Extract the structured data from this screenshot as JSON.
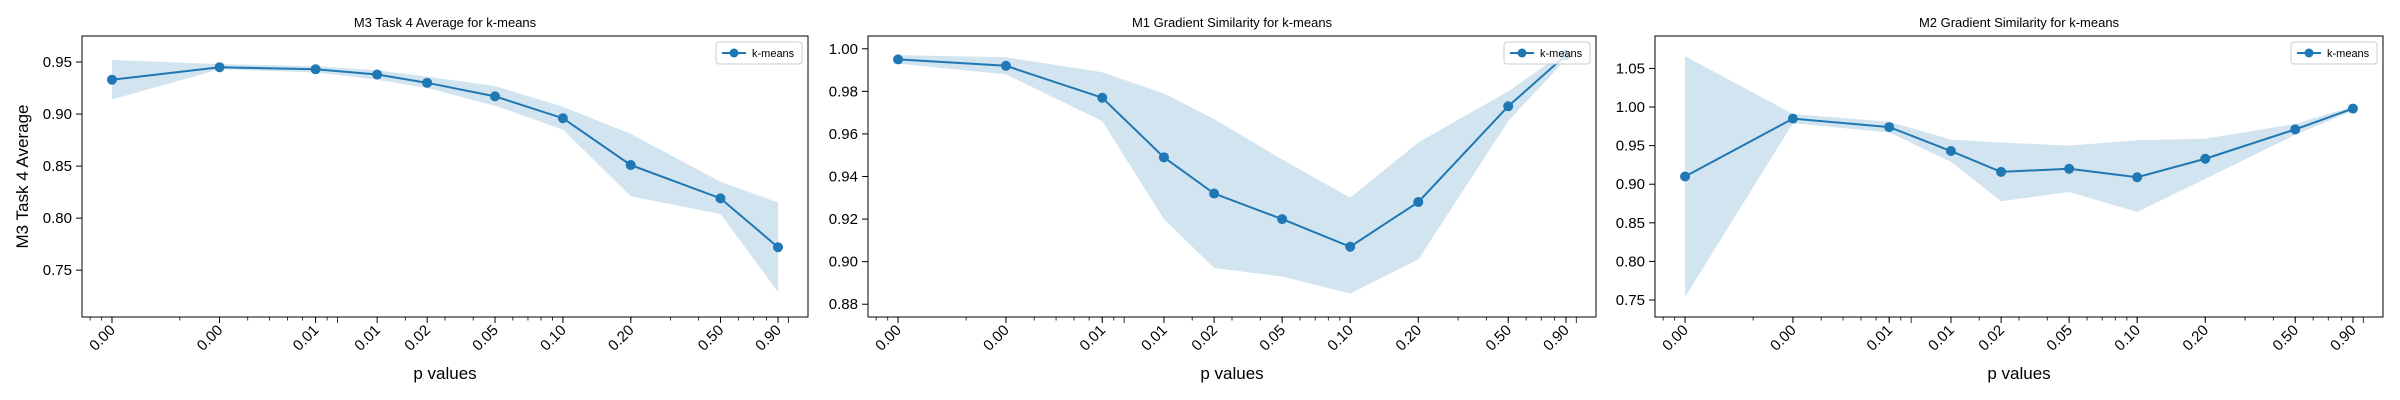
{
  "chart_data": [
    {
      "type": "line",
      "title": "M3 Task 4 Average for k-means",
      "xlabel": "p values",
      "ylabel": "M3 Task 4 Average",
      "xscale": "log",
      "x": [
        0.001,
        0.003,
        0.008,
        0.015,
        0.025,
        0.05,
        0.1,
        0.2,
        0.5,
        0.9
      ],
      "xtick_labels": [
        "0.00",
        "0.00",
        "0.01",
        "0.01",
        "0.02",
        "0.05",
        "0.10",
        "0.20",
        "0.50",
        "0.90"
      ],
      "ylim": [
        0.705,
        0.975
      ],
      "yticks": [
        0.75,
        0.8,
        0.85,
        0.9,
        0.95
      ],
      "ytick_labels": [
        "0.75",
        "0.80",
        "0.85",
        "0.90",
        "0.95"
      ],
      "legend": "top-right",
      "grid": false,
      "series": [
        {
          "name": "k-means",
          "color": "#1f77b4",
          "values": [
            0.933,
            0.945,
            0.943,
            0.938,
            0.93,
            0.917,
            0.896,
            0.851,
            0.819,
            0.772
          ],
          "band_low": [
            0.914,
            0.943,
            0.94,
            0.933,
            0.925,
            0.908,
            0.885,
            0.821,
            0.804,
            0.729
          ],
          "band_high": [
            0.952,
            0.948,
            0.946,
            0.942,
            0.936,
            0.927,
            0.907,
            0.881,
            0.835,
            0.815
          ]
        }
      ]
    },
    {
      "type": "line",
      "title": "M1 Gradient Similarity for k-means",
      "xlabel": "p values",
      "ylabel": "",
      "xscale": "log",
      "x": [
        0.001,
        0.003,
        0.008,
        0.015,
        0.025,
        0.05,
        0.1,
        0.2,
        0.5,
        0.9
      ],
      "xtick_labels": [
        "0.00",
        "0.00",
        "0.01",
        "0.01",
        "0.02",
        "0.05",
        "0.10",
        "0.20",
        "0.50",
        "0.90"
      ],
      "ylim": [
        0.874,
        1.006
      ],
      "yticks": [
        0.88,
        0.9,
        0.92,
        0.94,
        0.96,
        0.98,
        1.0
      ],
      "ytick_labels": [
        "0.88",
        "0.90",
        "0.92",
        "0.94",
        "0.96",
        "0.98",
        "1.00"
      ],
      "legend": "top-right",
      "grid": false,
      "series": [
        {
          "name": "k-means",
          "color": "#1f77b4",
          "values": [
            0.995,
            0.992,
            0.977,
            0.949,
            0.932,
            0.92,
            0.907,
            0.928,
            0.973,
            0.997
          ],
          "band_low": [
            0.993,
            0.988,
            0.966,
            0.92,
            0.897,
            0.893,
            0.885,
            0.901,
            0.966,
            0.995
          ],
          "band_high": [
            0.997,
            0.996,
            0.989,
            0.979,
            0.967,
            0.948,
            0.93,
            0.956,
            0.98,
            0.999
          ]
        }
      ]
    },
    {
      "type": "line",
      "title": "M2 Gradient Similarity for k-means",
      "xlabel": "p values",
      "ylabel": "",
      "xscale": "log",
      "x": [
        0.001,
        0.003,
        0.008,
        0.015,
        0.025,
        0.05,
        0.1,
        0.2,
        0.5,
        0.9
      ],
      "xtick_labels": [
        "0.00",
        "0.00",
        "0.01",
        "0.01",
        "0.02",
        "0.05",
        "0.10",
        "0.20",
        "0.50",
        "0.90"
      ],
      "ylim": [
        0.728,
        1.092
      ],
      "yticks": [
        0.75,
        0.8,
        0.85,
        0.9,
        0.95,
        1.0,
        1.05
      ],
      "ytick_labels": [
        "0.75",
        "0.80",
        "0.85",
        "0.90",
        "0.95",
        "1.00",
        "1.05"
      ],
      "legend": "top-right",
      "grid": false,
      "series": [
        {
          "name": "k-means",
          "color": "#1f77b4",
          "values": [
            0.91,
            0.985,
            0.974,
            0.943,
            0.916,
            0.92,
            0.909,
            0.933,
            0.971,
            0.998
          ],
          "band_low": [
            0.754,
            0.979,
            0.967,
            0.929,
            0.878,
            0.89,
            0.864,
            0.907,
            0.964,
            0.995
          ],
          "band_high": [
            1.066,
            0.991,
            0.981,
            0.958,
            0.954,
            0.95,
            0.957,
            0.959,
            0.978,
            1.001
          ]
        }
      ]
    }
  ]
}
